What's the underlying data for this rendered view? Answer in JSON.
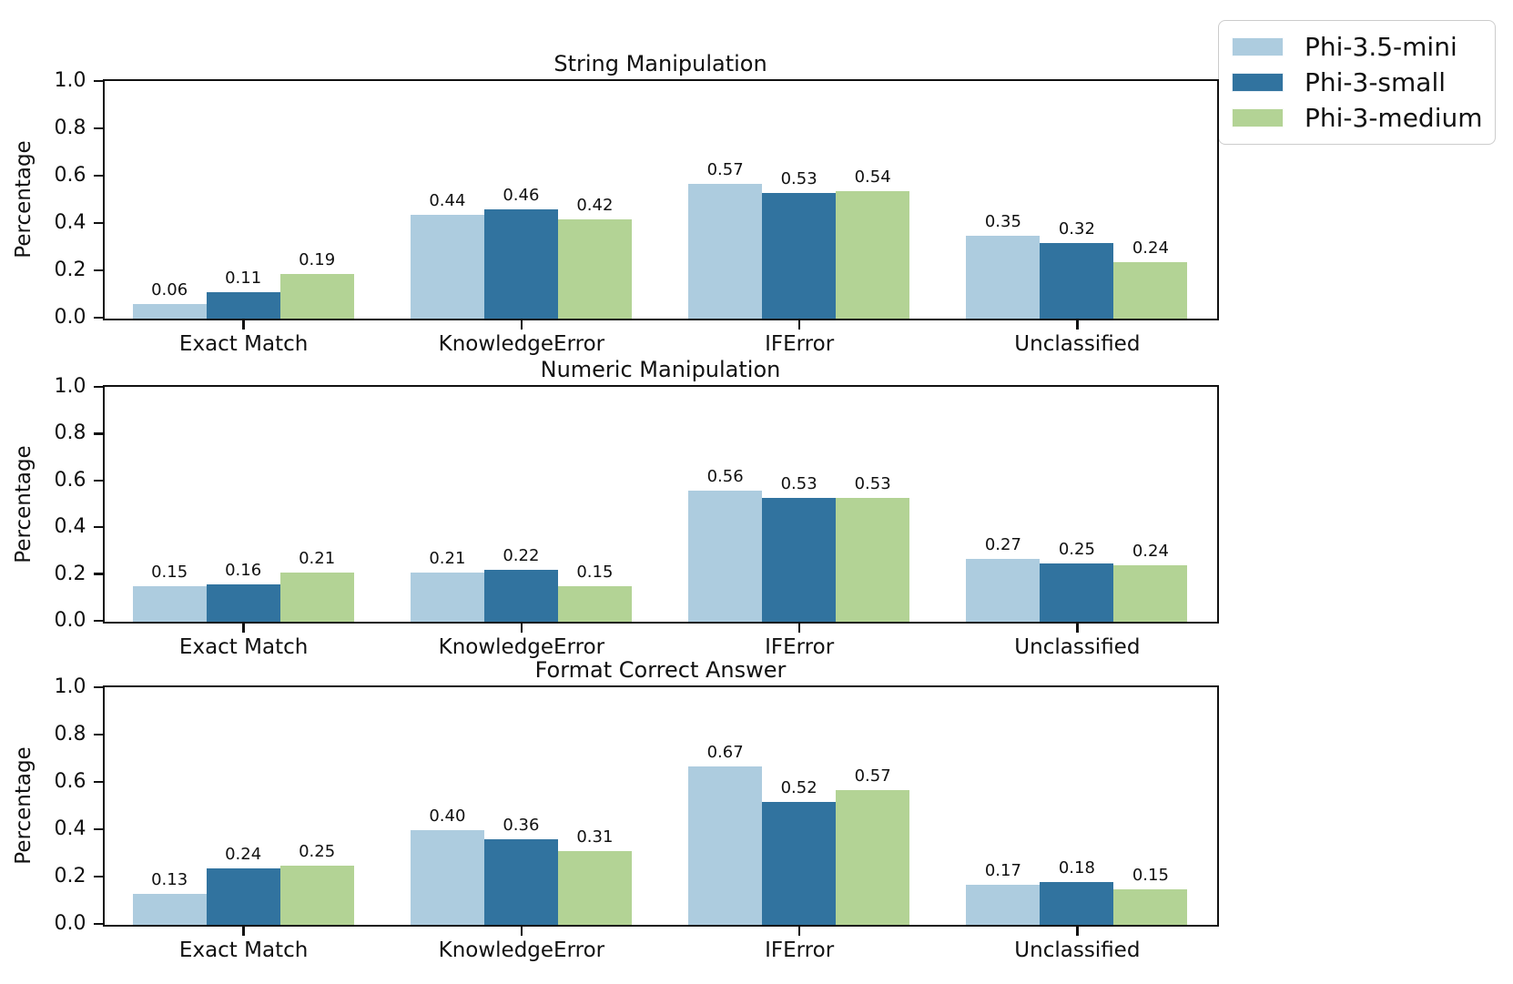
{
  "figure": {
    "background": "#ffffff",
    "text_color": "#111111"
  },
  "legend": {
    "position": "upper-right",
    "items": [
      {
        "label": "Phi-3.5-mini",
        "color": "#adccdf"
      },
      {
        "label": "Phi-3-small",
        "color": "#31739f"
      },
      {
        "label": "Phi-3-medium",
        "color": "#b3d395"
      }
    ]
  },
  "chart_data": [
    {
      "type": "bar",
      "title": "String Manipulation",
      "xlabel": "",
      "ylabel": "Percentage",
      "ylim": [
        0.0,
        1.0
      ],
      "yticks": [
        "0.0",
        "0.2",
        "0.4",
        "0.6",
        "0.8",
        "1.0"
      ],
      "grid": false,
      "categories": [
        "Exact Match",
        "KnowledgeError",
        "IFError",
        "Unclassified"
      ],
      "series": [
        {
          "name": "Phi-3.5-mini",
          "color": "#adccdf",
          "values": [
            0.06,
            0.44,
            0.57,
            0.35
          ],
          "labels": [
            "0.06",
            "0.44",
            "0.57",
            "0.35"
          ]
        },
        {
          "name": "Phi-3-small",
          "color": "#31739f",
          "values": [
            0.11,
            0.46,
            0.53,
            0.32
          ],
          "labels": [
            "0.11",
            "0.46",
            "0.53",
            "0.32"
          ]
        },
        {
          "name": "Phi-3-medium",
          "color": "#b3d395",
          "values": [
            0.19,
            0.42,
            0.54,
            0.24
          ],
          "labels": [
            "0.19",
            "0.42",
            "0.54",
            "0.24"
          ]
        }
      ]
    },
    {
      "type": "bar",
      "title": "Numeric Manipulation",
      "xlabel": "",
      "ylabel": "Percentage",
      "ylim": [
        0.0,
        1.0
      ],
      "yticks": [
        "0.0",
        "0.2",
        "0.4",
        "0.6",
        "0.8",
        "1.0"
      ],
      "grid": false,
      "categories": [
        "Exact Match",
        "KnowledgeError",
        "IFError",
        "Unclassified"
      ],
      "series": [
        {
          "name": "Phi-3.5-mini",
          "color": "#adccdf",
          "values": [
            0.15,
            0.21,
            0.56,
            0.27
          ],
          "labels": [
            "0.15",
            "0.21",
            "0.56",
            "0.27"
          ]
        },
        {
          "name": "Phi-3-small",
          "color": "#31739f",
          "values": [
            0.16,
            0.22,
            0.53,
            0.25
          ],
          "labels": [
            "0.16",
            "0.22",
            "0.53",
            "0.25"
          ]
        },
        {
          "name": "Phi-3-medium",
          "color": "#b3d395",
          "values": [
            0.21,
            0.15,
            0.53,
            0.24
          ],
          "labels": [
            "0.21",
            "0.15",
            "0.53",
            "0.24"
          ]
        }
      ]
    },
    {
      "type": "bar",
      "title": "Format Correct Answer",
      "xlabel": "",
      "ylabel": "Percentage",
      "ylim": [
        0.0,
        1.0
      ],
      "yticks": [
        "0.0",
        "0.2",
        "0.4",
        "0.6",
        "0.8",
        "1.0"
      ],
      "grid": false,
      "categories": [
        "Exact Match",
        "KnowledgeError",
        "IFError",
        "Unclassified"
      ],
      "series": [
        {
          "name": "Phi-3.5-mini",
          "color": "#adccdf",
          "values": [
            0.13,
            0.4,
            0.67,
            0.17
          ],
          "labels": [
            "0.13",
            "0.40",
            "0.67",
            "0.17"
          ]
        },
        {
          "name": "Phi-3-small",
          "color": "#31739f",
          "values": [
            0.24,
            0.36,
            0.52,
            0.18
          ],
          "labels": [
            "0.24",
            "0.36",
            "0.52",
            "0.18"
          ]
        },
        {
          "name": "Phi-3-medium",
          "color": "#b3d395",
          "values": [
            0.25,
            0.31,
            0.57,
            0.15
          ],
          "labels": [
            "0.25",
            "0.31",
            "0.57",
            "0.15"
          ]
        }
      ]
    }
  ]
}
